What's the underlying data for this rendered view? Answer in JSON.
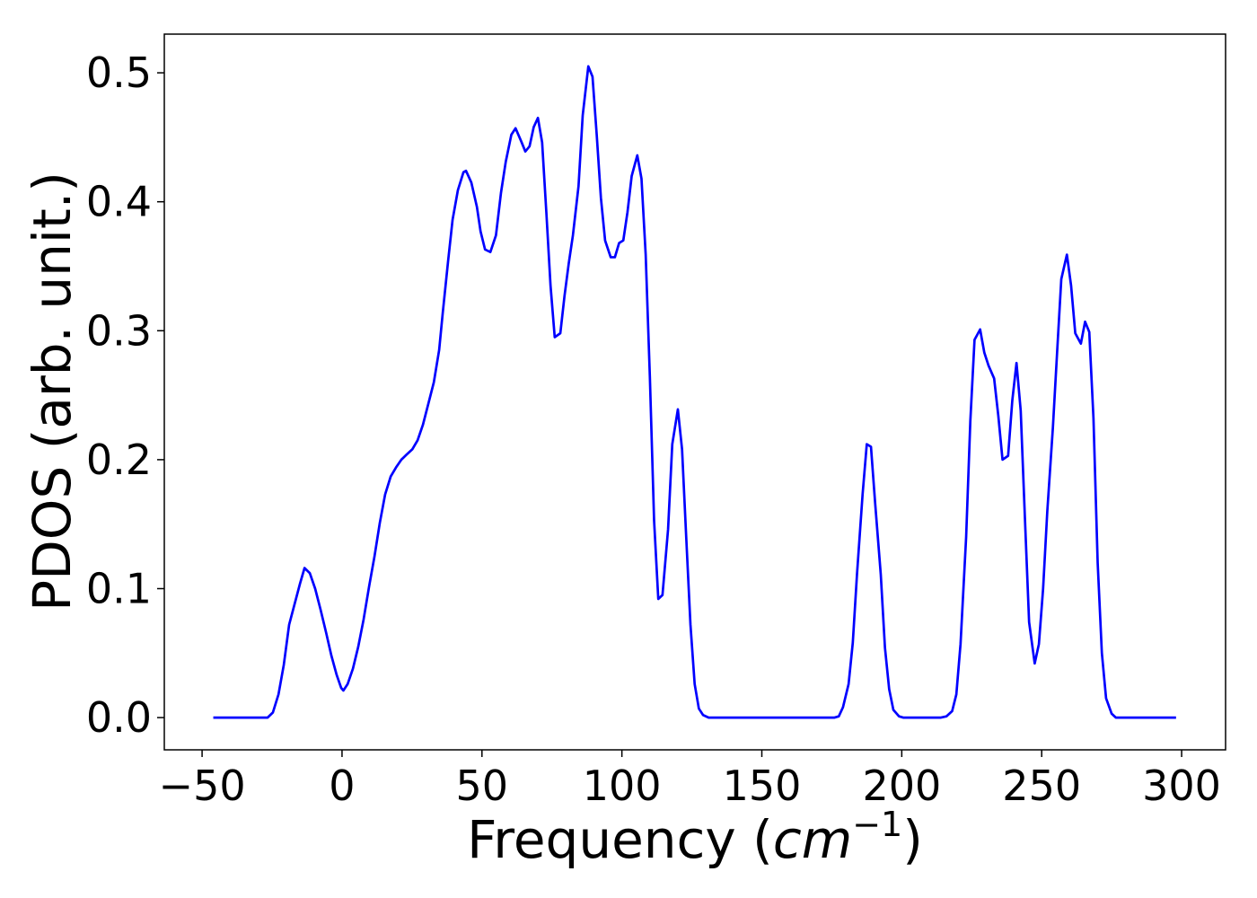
{
  "chart_data": {
    "type": "line",
    "ylabel": "PDOS (arb. unit.)",
    "xlabel": {
      "text": "Frequency (",
      "math": "cm",
      "sup": "−1",
      "close": ")"
    },
    "color": "#0000ff",
    "xlim": [
      -63.5,
      315.7
    ],
    "ylim": [
      -0.025,
      0.53
    ],
    "xticks": [
      {
        "value": -50,
        "label": "−50"
      },
      0,
      50,
      100,
      150,
      200,
      250,
      300
    ],
    "yticks": [
      {
        "value": 0,
        "label": "0.0"
      },
      0.1,
      0.2,
      0.3,
      0.4,
      0.5
    ],
    "x": [
      -46,
      -26.6,
      -24.7,
      -22.7,
      -20.8,
      -18.9,
      -15,
      -13.4,
      -11.5,
      -9.6,
      -7.7,
      -5.7,
      -3.8,
      -1.9,
      -0.3,
      0.5,
      2,
      3.9,
      5.8,
      7.7,
      9.7,
      11.6,
      13.5,
      15.4,
      17.4,
      19.3,
      21.2,
      23.1,
      25.1,
      27,
      28.9,
      30.8,
      32.8,
      34.7,
      36,
      37.9,
      39.5,
      41.4,
      43.4,
      44.3,
      46.2,
      48.2,
      49.5,
      51.1,
      53,
      55,
      56.8,
      58.5,
      60.5,
      62,
      64,
      65.5,
      67,
      68.5,
      70,
      71.5,
      73,
      74.5,
      76,
      78,
      79.5,
      81,
      82.5,
      84.5,
      86,
      88,
      89.5,
      91,
      92.5,
      94,
      96,
      97.5,
      99,
      100.5,
      102,
      103.5,
      105.5,
      107,
      108.5,
      110,
      111.5,
      113,
      114.5,
      116.5,
      118,
      120,
      121.5,
      123,
      124.5,
      126,
      127.5,
      129,
      131,
      176,
      177.5,
      179,
      181,
      182.5,
      184,
      186,
      187.5,
      189,
      190.5,
      192.5,
      194,
      195.5,
      197,
      199,
      200.5,
      214,
      216,
      218,
      219.5,
      221,
      223,
      224.5,
      226,
      228,
      229.5,
      231,
      233,
      234.5,
      236,
      238,
      239.5,
      241,
      242.5,
      244,
      245.5,
      247.5,
      249,
      250.5,
      252,
      254,
      255.5,
      257,
      259,
      260.5,
      262,
      264,
      265.5,
      267,
      268.5,
      270,
      271.5,
      273,
      275,
      276.5,
      298
    ],
    "values": [
      0,
      0,
      0.004,
      0.018,
      0.041,
      0.072,
      0.104,
      0.116,
      0.112,
      0.1,
      0.084,
      0.066,
      0.048,
      0.033,
      0.023,
      0.021,
      0.026,
      0.038,
      0.055,
      0.076,
      0.102,
      0.125,
      0.151,
      0.173,
      0.187,
      0.194,
      0.2,
      0.204,
      0.208,
      0.215,
      0.227,
      0.243,
      0.26,
      0.285,
      0.314,
      0.354,
      0.386,
      0.409,
      0.423,
      0.424,
      0.415,
      0.396,
      0.377,
      0.363,
      0.361,
      0.374,
      0.407,
      0.431,
      0.452,
      0.457,
      0.447,
      0.439,
      0.443,
      0.458,
      0.465,
      0.446,
      0.392,
      0.335,
      0.295,
      0.298,
      0.327,
      0.352,
      0.374,
      0.412,
      0.467,
      0.505,
      0.497,
      0.452,
      0.403,
      0.37,
      0.357,
      0.357,
      0.368,
      0.37,
      0.392,
      0.42,
      0.436,
      0.418,
      0.359,
      0.264,
      0.153,
      0.092,
      0.095,
      0.146,
      0.212,
      0.239,
      0.208,
      0.139,
      0.072,
      0.026,
      0.007,
      0.002,
      0,
      0,
      0.001,
      0.008,
      0.026,
      0.058,
      0.111,
      0.173,
      0.212,
      0.21,
      0.166,
      0.111,
      0.054,
      0.022,
      0.006,
      0.001,
      0,
      0,
      0.001,
      0.005,
      0.018,
      0.057,
      0.14,
      0.23,
      0.293,
      0.301,
      0.283,
      0.273,
      0.263,
      0.234,
      0.2,
      0.203,
      0.246,
      0.275,
      0.238,
      0.155,
      0.074,
      0.042,
      0.057,
      0.1,
      0.16,
      0.225,
      0.283,
      0.34,
      0.359,
      0.335,
      0.298,
      0.29,
      0.307,
      0.299,
      0.232,
      0.12,
      0.05,
      0.015,
      0.003,
      0,
      0
    ]
  }
}
